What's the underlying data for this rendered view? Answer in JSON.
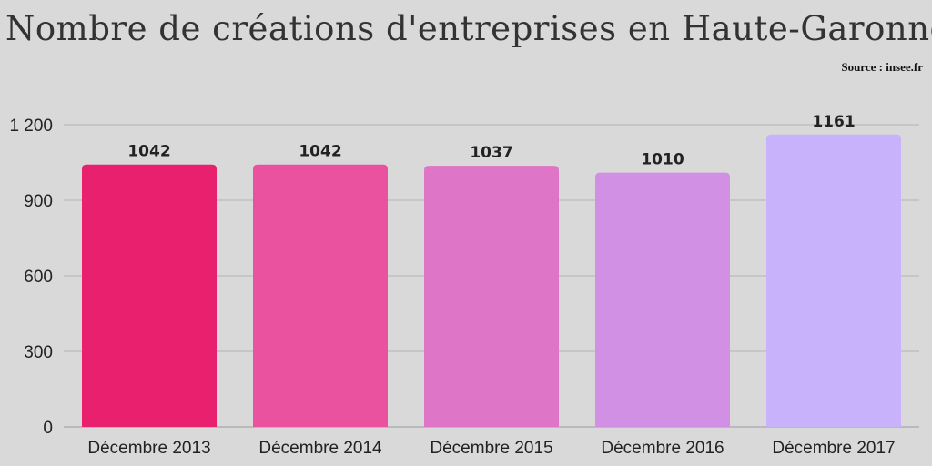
{
  "chart_data": {
    "type": "bar",
    "title": "Nombre de créations d'entreprises en Haute-Garonne",
    "source": "Source : insee.fr",
    "categories": [
      "Décembre 2013",
      "Décembre 2014",
      "Décembre 2015",
      "Décembre 2016",
      "Décembre 2017"
    ],
    "values": [
      1042,
      1042,
      1037,
      1010,
      1161
    ],
    "value_labels": [
      "1042",
      "1042",
      "1037",
      "1010",
      "1161"
    ],
    "bar_colors": [
      "#e8206e",
      "#ea529f",
      "#df75c6",
      "#d190e4",
      "#c8b2fb"
    ],
    "yticks": [
      0,
      300,
      600,
      900,
      1200
    ],
    "ytick_labels": [
      "0",
      "300",
      "600",
      "900",
      "1 200"
    ],
    "ylim": [
      0,
      1200
    ],
    "grid": true,
    "xlabel": "",
    "ylabel": ""
  }
}
